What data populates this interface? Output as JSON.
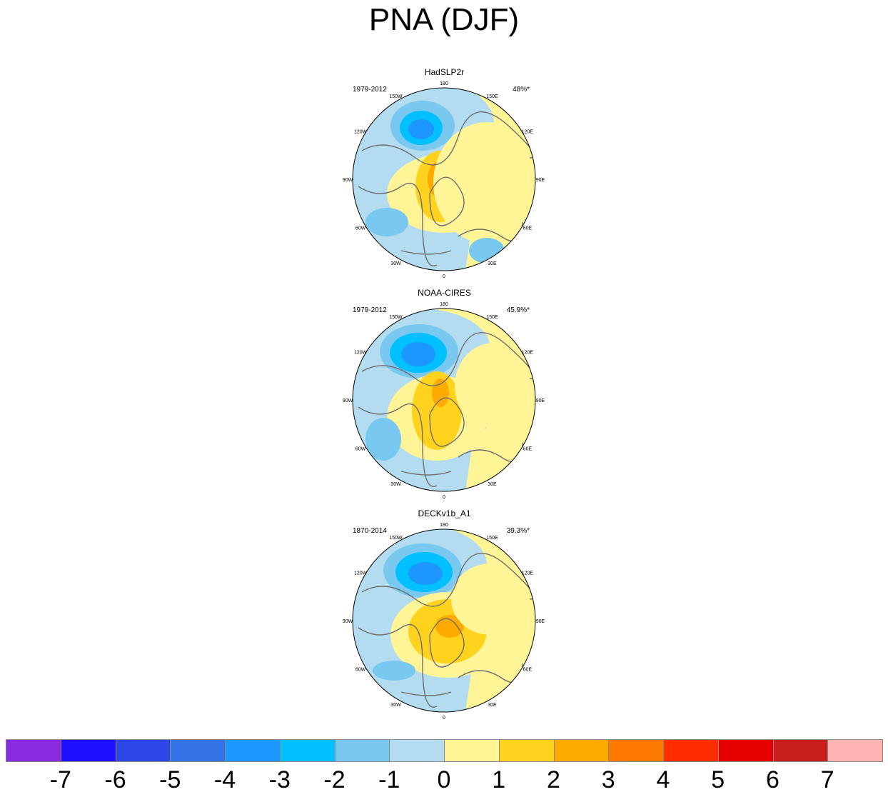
{
  "title": "PNA (DJF)",
  "panels": [
    {
      "title": "HadSLP2r",
      "years": "1979-2012",
      "pct": "48%*"
    },
    {
      "title": "NOAA-CIRES",
      "years": "1979-2012",
      "pct": "45.9%*"
    },
    {
      "title": "DECKv1b_A1",
      "years": "1870-2014",
      "pct": "39.3%*"
    }
  ],
  "lon_labels": {
    "l180": "180",
    "l150e": "150E",
    "l120e": "120E",
    "l90e": "90E",
    "l60e": "60E",
    "l30e": "30E",
    "l0": "0",
    "l30w": "30W",
    "l60w": "60W",
    "l90w": "90W",
    "l120w": "120W",
    "l150w": "150W"
  },
  "colorbar": {
    "colors": [
      "#8a2be2",
      "#1e0fff",
      "#2d46e6",
      "#3373e6",
      "#1e96ff",
      "#00c0ff",
      "#78c8f0",
      "#b4dcf0",
      "#fff596",
      "#ffd21e",
      "#ffaa00",
      "#ff7800",
      "#ff2d00",
      "#e60000",
      "#c81e1e",
      "#ffb4b4"
    ],
    "labels": [
      "-7",
      "-6",
      "-5",
      "-4",
      "-3",
      "-2",
      "-1",
      "0",
      "1",
      "2",
      "3",
      "4",
      "5",
      "6",
      "7"
    ]
  }
}
